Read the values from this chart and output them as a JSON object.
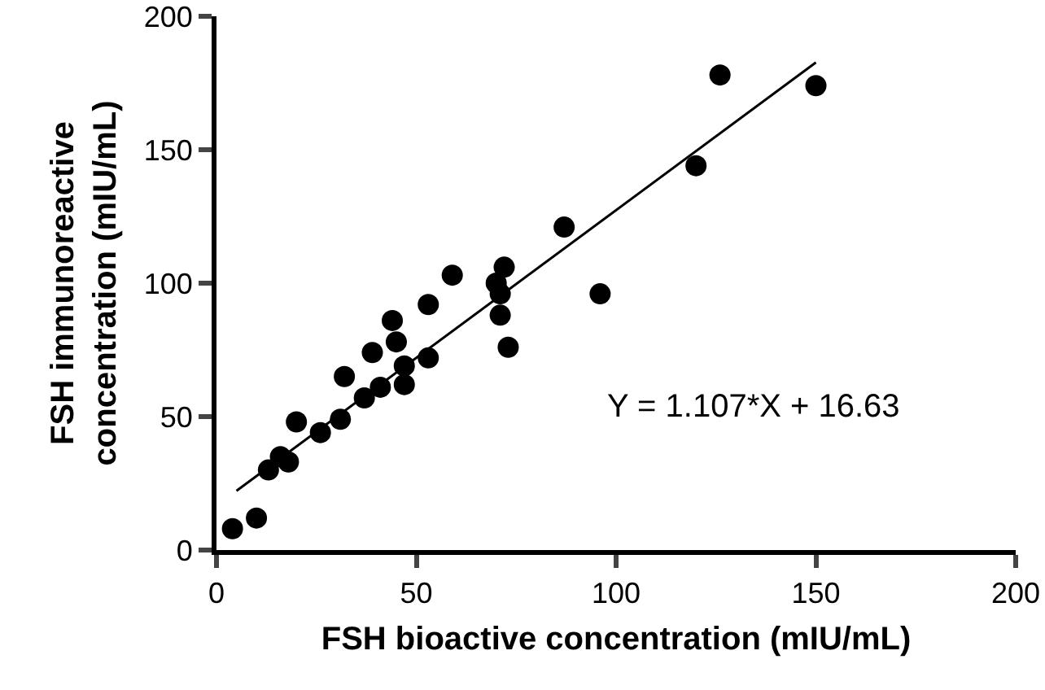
{
  "chart_data": {
    "type": "scatter",
    "xlabel": "FSH bioactive concentration (mIU/mL)",
    "ylabel": "FSH immunoreactive\nconcentration (mIU/mL)",
    "xlim": [
      0,
      200
    ],
    "xticks": [
      0,
      50,
      100,
      150,
      200
    ],
    "ylim": [
      0,
      200
    ],
    "yticks": [
      0,
      50,
      100,
      150,
      200
    ],
    "grid": false,
    "series": [
      {
        "color": "#000000",
        "marker": "circle",
        "x": [
          4,
          10,
          13,
          16,
          18,
          20,
          26,
          31,
          32,
          37,
          39,
          41,
          44,
          45,
          47,
          47,
          53,
          53,
          59,
          70,
          71,
          72,
          71,
          73,
          87,
          96,
          120,
          126,
          150
        ],
        "values": [
          8,
          12,
          30,
          35,
          33,
          48,
          44,
          49,
          65,
          57,
          74,
          61,
          86,
          78,
          69,
          62,
          92,
          72,
          103,
          100,
          96,
          106,
          88,
          76,
          121,
          96,
          144,
          178,
          174
        ]
      },
      {
        "type": "line",
        "color": "#000000",
        "line_style": "solid",
        "x": [
          5,
          150
        ],
        "values": [
          22.2,
          182.7
        ]
      }
    ],
    "annotations": [
      "Y = 1.107*X + 16.63"
    ]
  }
}
